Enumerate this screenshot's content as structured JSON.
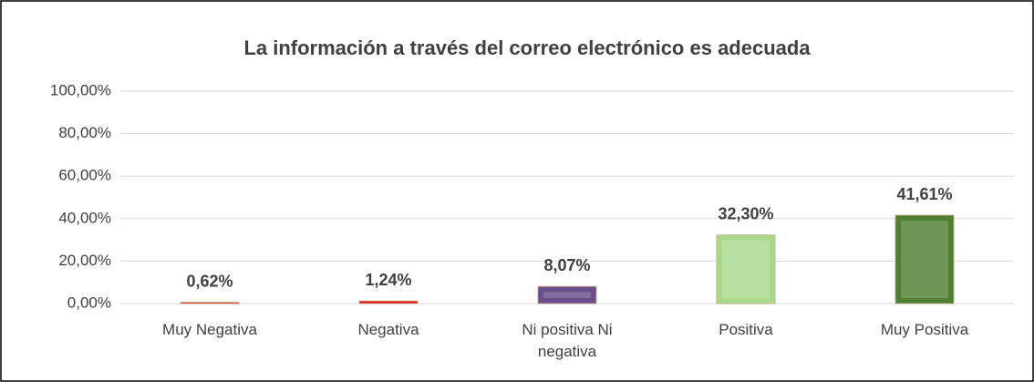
{
  "chart_data": {
    "type": "bar",
    "title": "La información a través del correo electrónico es adecuada",
    "categories": [
      "Muy Negativa",
      "Negativa",
      "Ni positiva Ni negativa",
      "Positiva",
      "Muy Positiva"
    ],
    "values": [
      0.62,
      1.24,
      8.07,
      32.3,
      41.61
    ],
    "value_labels": [
      "0,62%",
      "1,24%",
      "8,07%",
      "32,30%",
      "41,61%"
    ],
    "colors": [
      "#e02020",
      "#e02020",
      "#6a4f8c",
      "#a9d88a",
      "#4e7f32"
    ],
    "ylim": [
      0,
      100
    ],
    "yticks": [
      {
        "value": 0,
        "label": "0,00%"
      },
      {
        "value": 20,
        "label": "20,00%"
      },
      {
        "value": 40,
        "label": "40,00%"
      },
      {
        "value": 60,
        "label": "60,00%"
      },
      {
        "value": 80,
        "label": "80,00%"
      },
      {
        "value": 100,
        "label": "100,00%"
      }
    ],
    "grid": true
  }
}
